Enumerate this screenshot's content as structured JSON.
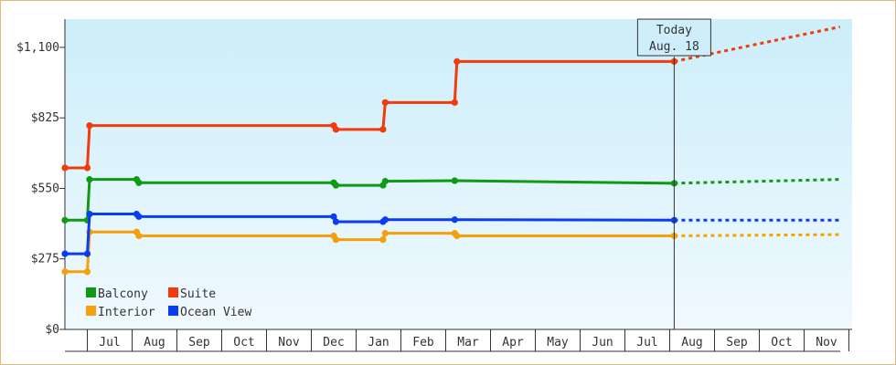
{
  "chart_data": {
    "type": "line",
    "title": "",
    "xlabel": "",
    "ylabel": "",
    "ylim": [
      0,
      1210
    ],
    "y_ticks": [
      0,
      275,
      550,
      825,
      1100
    ],
    "y_tick_labels": [
      "$0",
      "$275",
      "$550",
      "$825",
      "$1,100"
    ],
    "x_range": [
      0.0,
      17.3
    ],
    "month_labels": [
      "Jul",
      "Aug",
      "Sep",
      "Oct",
      "Nov",
      "Dec",
      "Jan",
      "Feb",
      "Mar",
      "Apr",
      "May",
      "Jun",
      "Jul",
      "Aug",
      "Sep",
      "Oct",
      "Nov"
    ],
    "grid": false,
    "background": "light-blue gradient",
    "legend_position": "bottom-left",
    "today": {
      "line1": "Today",
      "line2": "Aug. 18",
      "x": 13.6
    },
    "series": [
      {
        "name": "Balcony",
        "color": "#0e9a12",
        "points": [
          [
            0.0,
            426
          ],
          [
            0.5,
            426
          ],
          [
            0.55,
            585
          ],
          [
            1.6,
            585
          ],
          [
            1.65,
            572
          ],
          [
            6.0,
            572
          ],
          [
            6.05,
            562
          ],
          [
            7.1,
            562
          ],
          [
            7.15,
            578
          ],
          [
            8.7,
            580
          ],
          [
            13.6,
            570
          ]
        ],
        "forecast": [
          [
            13.6,
            570
          ],
          [
            17.3,
            585
          ]
        ]
      },
      {
        "name": "Suite",
        "color": "#f23a0a",
        "points": [
          [
            0.0,
            630
          ],
          [
            0.5,
            630
          ],
          [
            0.55,
            795
          ],
          [
            6.0,
            795
          ],
          [
            6.05,
            780
          ],
          [
            7.1,
            780
          ],
          [
            7.15,
            885
          ],
          [
            8.7,
            885
          ],
          [
            8.75,
            1045
          ],
          [
            13.6,
            1045
          ]
        ],
        "forecast": [
          [
            13.6,
            1045
          ],
          [
            17.3,
            1180
          ]
        ]
      },
      {
        "name": "Interior",
        "color": "#f5a00a",
        "points": [
          [
            0.0,
            225
          ],
          [
            0.5,
            225
          ],
          [
            0.55,
            380
          ],
          [
            1.6,
            380
          ],
          [
            1.65,
            365
          ],
          [
            6.0,
            365
          ],
          [
            6.05,
            350
          ],
          [
            7.1,
            350
          ],
          [
            7.15,
            375
          ],
          [
            8.7,
            375
          ],
          [
            8.75,
            365
          ],
          [
            13.6,
            365
          ]
        ],
        "forecast": [
          [
            13.6,
            365
          ],
          [
            17.3,
            370
          ]
        ]
      },
      {
        "name": "Ocean View",
        "color": "#0a3cf2",
        "points": [
          [
            0.0,
            295
          ],
          [
            0.5,
            295
          ],
          [
            0.55,
            450
          ],
          [
            1.6,
            450
          ],
          [
            1.65,
            440
          ],
          [
            6.0,
            440
          ],
          [
            6.05,
            420
          ],
          [
            7.1,
            420
          ],
          [
            7.15,
            428
          ],
          [
            8.7,
            428
          ],
          [
            13.6,
            426
          ]
        ],
        "forecast": [
          [
            13.6,
            426
          ],
          [
            17.3,
            426
          ]
        ]
      }
    ]
  }
}
